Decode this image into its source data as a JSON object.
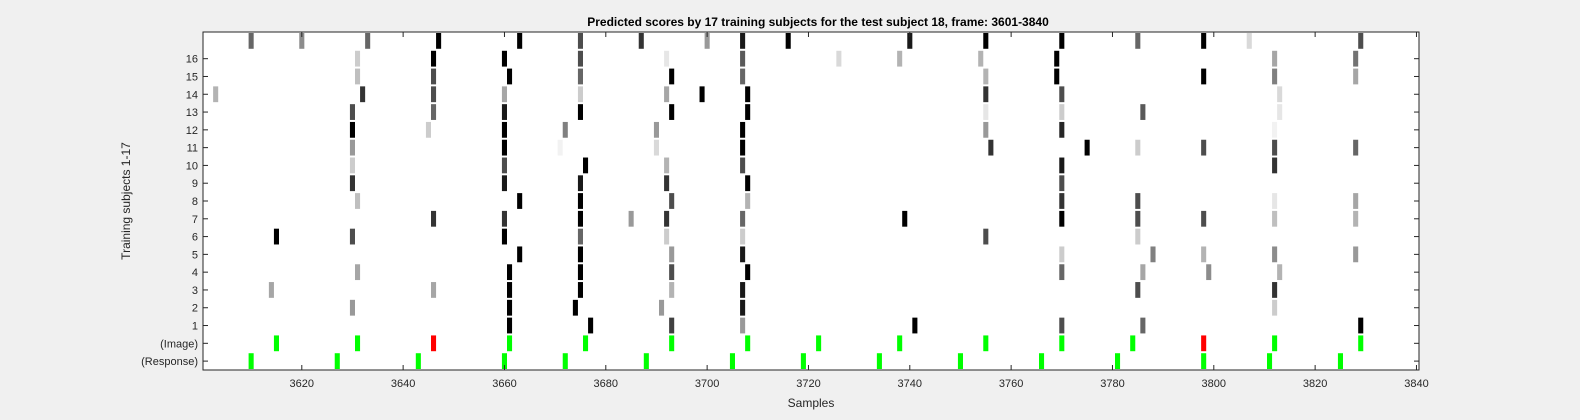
{
  "chart_data": {
    "type": "heatmap",
    "title": "Predicted scores by 17 training subjects for the test subject 18, frame: 3601-3840",
    "xlabel": "Samples",
    "ylabel": "Training subjects 1-17",
    "xlim": [
      3601,
      3840
    ],
    "xticks": [
      3620,
      3640,
      3660,
      3680,
      3700,
      3720,
      3740,
      3760,
      3780,
      3800,
      3820,
      3840
    ],
    "yticks": [
      {
        "row": 1,
        "label": "1"
      },
      {
        "row": 2,
        "label": "2"
      },
      {
        "row": 3,
        "label": "3"
      },
      {
        "row": 4,
        "label": "4"
      },
      {
        "row": 5,
        "label": "5"
      },
      {
        "row": 6,
        "label": "6"
      },
      {
        "row": 7,
        "label": "7"
      },
      {
        "row": 8,
        "label": "8"
      },
      {
        "row": 9,
        "label": "9"
      },
      {
        "row": 10,
        "label": "10"
      },
      {
        "row": 11,
        "label": "11"
      },
      {
        "row": 12,
        "label": "12"
      },
      {
        "row": 13,
        "label": "13"
      },
      {
        "row": 14,
        "label": "14"
      },
      {
        "row": 15,
        "label": "15"
      },
      {
        "row": 16,
        "label": "16"
      },
      {
        "row": 0,
        "label": "(Image)"
      },
      {
        "row": -1,
        "label": "(Response)"
      }
    ],
    "colors": {
      "green": "#00ff00",
      "red": "#ff0000",
      "plot_bg": "#ffffff",
      "figure_bg": "#f0f0f0"
    },
    "subject_cells": [
      [
        17,
        3610,
        0.6
      ],
      [
        17,
        3620,
        0.45
      ],
      [
        17,
        3633,
        0.6
      ],
      [
        17,
        3647,
        1.0
      ],
      [
        17,
        3663,
        1.0
      ],
      [
        17,
        3675,
        0.7
      ],
      [
        17,
        3687,
        0.8
      ],
      [
        17,
        3700,
        0.4
      ],
      [
        17,
        3707,
        0.9
      ],
      [
        17,
        3716,
        1.0
      ],
      [
        17,
        3740,
        0.9
      ],
      [
        17,
        3755,
        1.0
      ],
      [
        17,
        3770,
        1.0
      ],
      [
        17,
        3785,
        0.6
      ],
      [
        17,
        3798,
        1.0
      ],
      [
        17,
        3807,
        0.15
      ],
      [
        17,
        3829,
        0.7
      ],
      [
        16,
        3631,
        0.2
      ],
      [
        16,
        3646,
        1.0
      ],
      [
        16,
        3660,
        1.0
      ],
      [
        16,
        3675,
        0.7
      ],
      [
        16,
        3692,
        0.1
      ],
      [
        16,
        3707,
        0.65
      ],
      [
        16,
        3726,
        0.15
      ],
      [
        16,
        3738,
        0.3
      ],
      [
        16,
        3754,
        0.3
      ],
      [
        16,
        3769,
        1.0
      ],
      [
        16,
        3812,
        0.35
      ],
      [
        16,
        3828,
        0.55
      ],
      [
        15,
        3631,
        0.25
      ],
      [
        15,
        3646,
        0.7
      ],
      [
        15,
        3661,
        1.0
      ],
      [
        15,
        3675,
        0.6
      ],
      [
        15,
        3693,
        1.0
      ],
      [
        15,
        3707,
        0.6
      ],
      [
        15,
        3755,
        0.3
      ],
      [
        15,
        3769,
        1.0
      ],
      [
        15,
        3798,
        1.0
      ],
      [
        15,
        3812,
        0.5
      ],
      [
        15,
        3828,
        0.35
      ],
      [
        14,
        3603,
        0.3
      ],
      [
        14,
        3632,
        0.8
      ],
      [
        14,
        3646,
        0.7
      ],
      [
        14,
        3660,
        0.35
      ],
      [
        14,
        3675,
        0.2
      ],
      [
        14,
        3692,
        0.35
      ],
      [
        14,
        3699,
        1.0
      ],
      [
        14,
        3708,
        1.0
      ],
      [
        14,
        3755,
        0.8
      ],
      [
        14,
        3770,
        0.7
      ],
      [
        14,
        3813,
        0.15
      ],
      [
        13,
        3630,
        0.7
      ],
      [
        13,
        3646,
        0.6
      ],
      [
        13,
        3660,
        0.9
      ],
      [
        13,
        3675,
        1.0
      ],
      [
        13,
        3693,
        1.0
      ],
      [
        13,
        3708,
        1.0
      ],
      [
        13,
        3755,
        0.1
      ],
      [
        13,
        3770,
        0.2
      ],
      [
        13,
        3786,
        0.65
      ],
      [
        13,
        3813,
        0.1
      ],
      [
        12,
        3630,
        1.0
      ],
      [
        12,
        3645,
        0.2
      ],
      [
        12,
        3660,
        1.0
      ],
      [
        12,
        3672,
        0.5
      ],
      [
        12,
        3690,
        0.4
      ],
      [
        12,
        3707,
        1.0
      ],
      [
        12,
        3755,
        0.4
      ],
      [
        12,
        3770,
        0.85
      ],
      [
        12,
        3812,
        0.05
      ],
      [
        11,
        3630,
        0.4
      ],
      [
        11,
        3660,
        1.0
      ],
      [
        11,
        3671,
        0.05
      ],
      [
        11,
        3690,
        0.15
      ],
      [
        11,
        3707,
        1.0
      ],
      [
        11,
        3756,
        0.8
      ],
      [
        11,
        3775,
        1.0
      ],
      [
        11,
        3785,
        0.2
      ],
      [
        11,
        3798,
        0.7
      ],
      [
        11,
        3812,
        0.7
      ],
      [
        11,
        3828,
        0.6
      ],
      [
        10,
        3630,
        0.2
      ],
      [
        10,
        3660,
        0.7
      ],
      [
        10,
        3676,
        1.0
      ],
      [
        10,
        3692,
        0.3
      ],
      [
        10,
        3707,
        0.7
      ],
      [
        10,
        3770,
        0.9
      ],
      [
        10,
        3812,
        0.8
      ],
      [
        9,
        3630,
        0.8
      ],
      [
        9,
        3660,
        0.9
      ],
      [
        9,
        3675,
        0.9
      ],
      [
        9,
        3692,
        0.8
      ],
      [
        9,
        3708,
        1.0
      ],
      [
        9,
        3770,
        0.7
      ],
      [
        8,
        3631,
        0.25
      ],
      [
        8,
        3663,
        1.0
      ],
      [
        8,
        3675,
        1.0
      ],
      [
        8,
        3693,
        0.7
      ],
      [
        8,
        3708,
        0.3
      ],
      [
        8,
        3770,
        0.8
      ],
      [
        8,
        3785,
        0.7
      ],
      [
        8,
        3812,
        0.1
      ],
      [
        8,
        3828,
        0.35
      ],
      [
        7,
        3646,
        0.8
      ],
      [
        7,
        3660,
        0.8
      ],
      [
        7,
        3675,
        1.0
      ],
      [
        7,
        3685,
        0.4
      ],
      [
        7,
        3692,
        0.8
      ],
      [
        7,
        3707,
        0.6
      ],
      [
        7,
        3739,
        1.0
      ],
      [
        7,
        3770,
        1.0
      ],
      [
        7,
        3785,
        0.7
      ],
      [
        7,
        3798,
        0.7
      ],
      [
        7,
        3812,
        0.25
      ],
      [
        7,
        3828,
        0.3
      ],
      [
        6,
        3615,
        1.0
      ],
      [
        6,
        3630,
        0.7
      ],
      [
        6,
        3660,
        1.0
      ],
      [
        6,
        3675,
        0.6
      ],
      [
        6,
        3692,
        0.2
      ],
      [
        6,
        3707,
        0.2
      ],
      [
        6,
        3755,
        0.7
      ],
      [
        6,
        3785,
        0.2
      ],
      [
        5,
        3663,
        1.0
      ],
      [
        5,
        3675,
        1.0
      ],
      [
        5,
        3693,
        0.4
      ],
      [
        5,
        3707,
        0.9
      ],
      [
        5,
        3770,
        0.2
      ],
      [
        5,
        3788,
        0.5
      ],
      [
        5,
        3798,
        0.3
      ],
      [
        5,
        3812,
        0.45
      ],
      [
        5,
        3828,
        0.4
      ],
      [
        4,
        3631,
        0.35
      ],
      [
        4,
        3661,
        1.0
      ],
      [
        4,
        3675,
        1.0
      ],
      [
        4,
        3693,
        0.7
      ],
      [
        4,
        3708,
        1.0
      ],
      [
        4,
        3770,
        0.6
      ],
      [
        4,
        3786,
        0.35
      ],
      [
        4,
        3799,
        0.45
      ],
      [
        4,
        3813,
        0.3
      ],
      [
        3,
        3614,
        0.35
      ],
      [
        3,
        3646,
        0.35
      ],
      [
        3,
        3661,
        1.0
      ],
      [
        3,
        3675,
        1.0
      ],
      [
        3,
        3693,
        0.3
      ],
      [
        3,
        3707,
        0.9
      ],
      [
        3,
        3785,
        0.7
      ],
      [
        3,
        3812,
        0.8
      ],
      [
        2,
        3630,
        0.4
      ],
      [
        2,
        3661,
        1.0
      ],
      [
        2,
        3674,
        1.0
      ],
      [
        2,
        3691,
        0.4
      ],
      [
        2,
        3707,
        0.9
      ],
      [
        2,
        3812,
        0.2
      ],
      [
        1,
        3661,
        1.0
      ],
      [
        1,
        3677,
        1.0
      ],
      [
        1,
        3693,
        0.75
      ],
      [
        1,
        3707,
        0.4
      ],
      [
        1,
        3741,
        1.0
      ],
      [
        1,
        3770,
        0.7
      ],
      [
        1,
        3786,
        0.6
      ],
      [
        1,
        3829,
        1.0
      ]
    ],
    "image_markers": [
      [
        3615,
        "green"
      ],
      [
        3631,
        "green"
      ],
      [
        3646,
        "red"
      ],
      [
        3661,
        "green"
      ],
      [
        3676,
        "green"
      ],
      [
        3693,
        "green"
      ],
      [
        3708,
        "green"
      ],
      [
        3722,
        "green"
      ],
      [
        3738,
        "green"
      ],
      [
        3755,
        "green"
      ],
      [
        3770,
        "green"
      ],
      [
        3784,
        "green"
      ],
      [
        3798,
        "red"
      ],
      [
        3812,
        "green"
      ],
      [
        3829,
        "green"
      ]
    ],
    "response_markers": [
      3610,
      3627,
      3643,
      3660,
      3672,
      3688,
      3705,
      3719,
      3734,
      3750,
      3766,
      3781,
      3798,
      3811,
      3825
    ]
  }
}
